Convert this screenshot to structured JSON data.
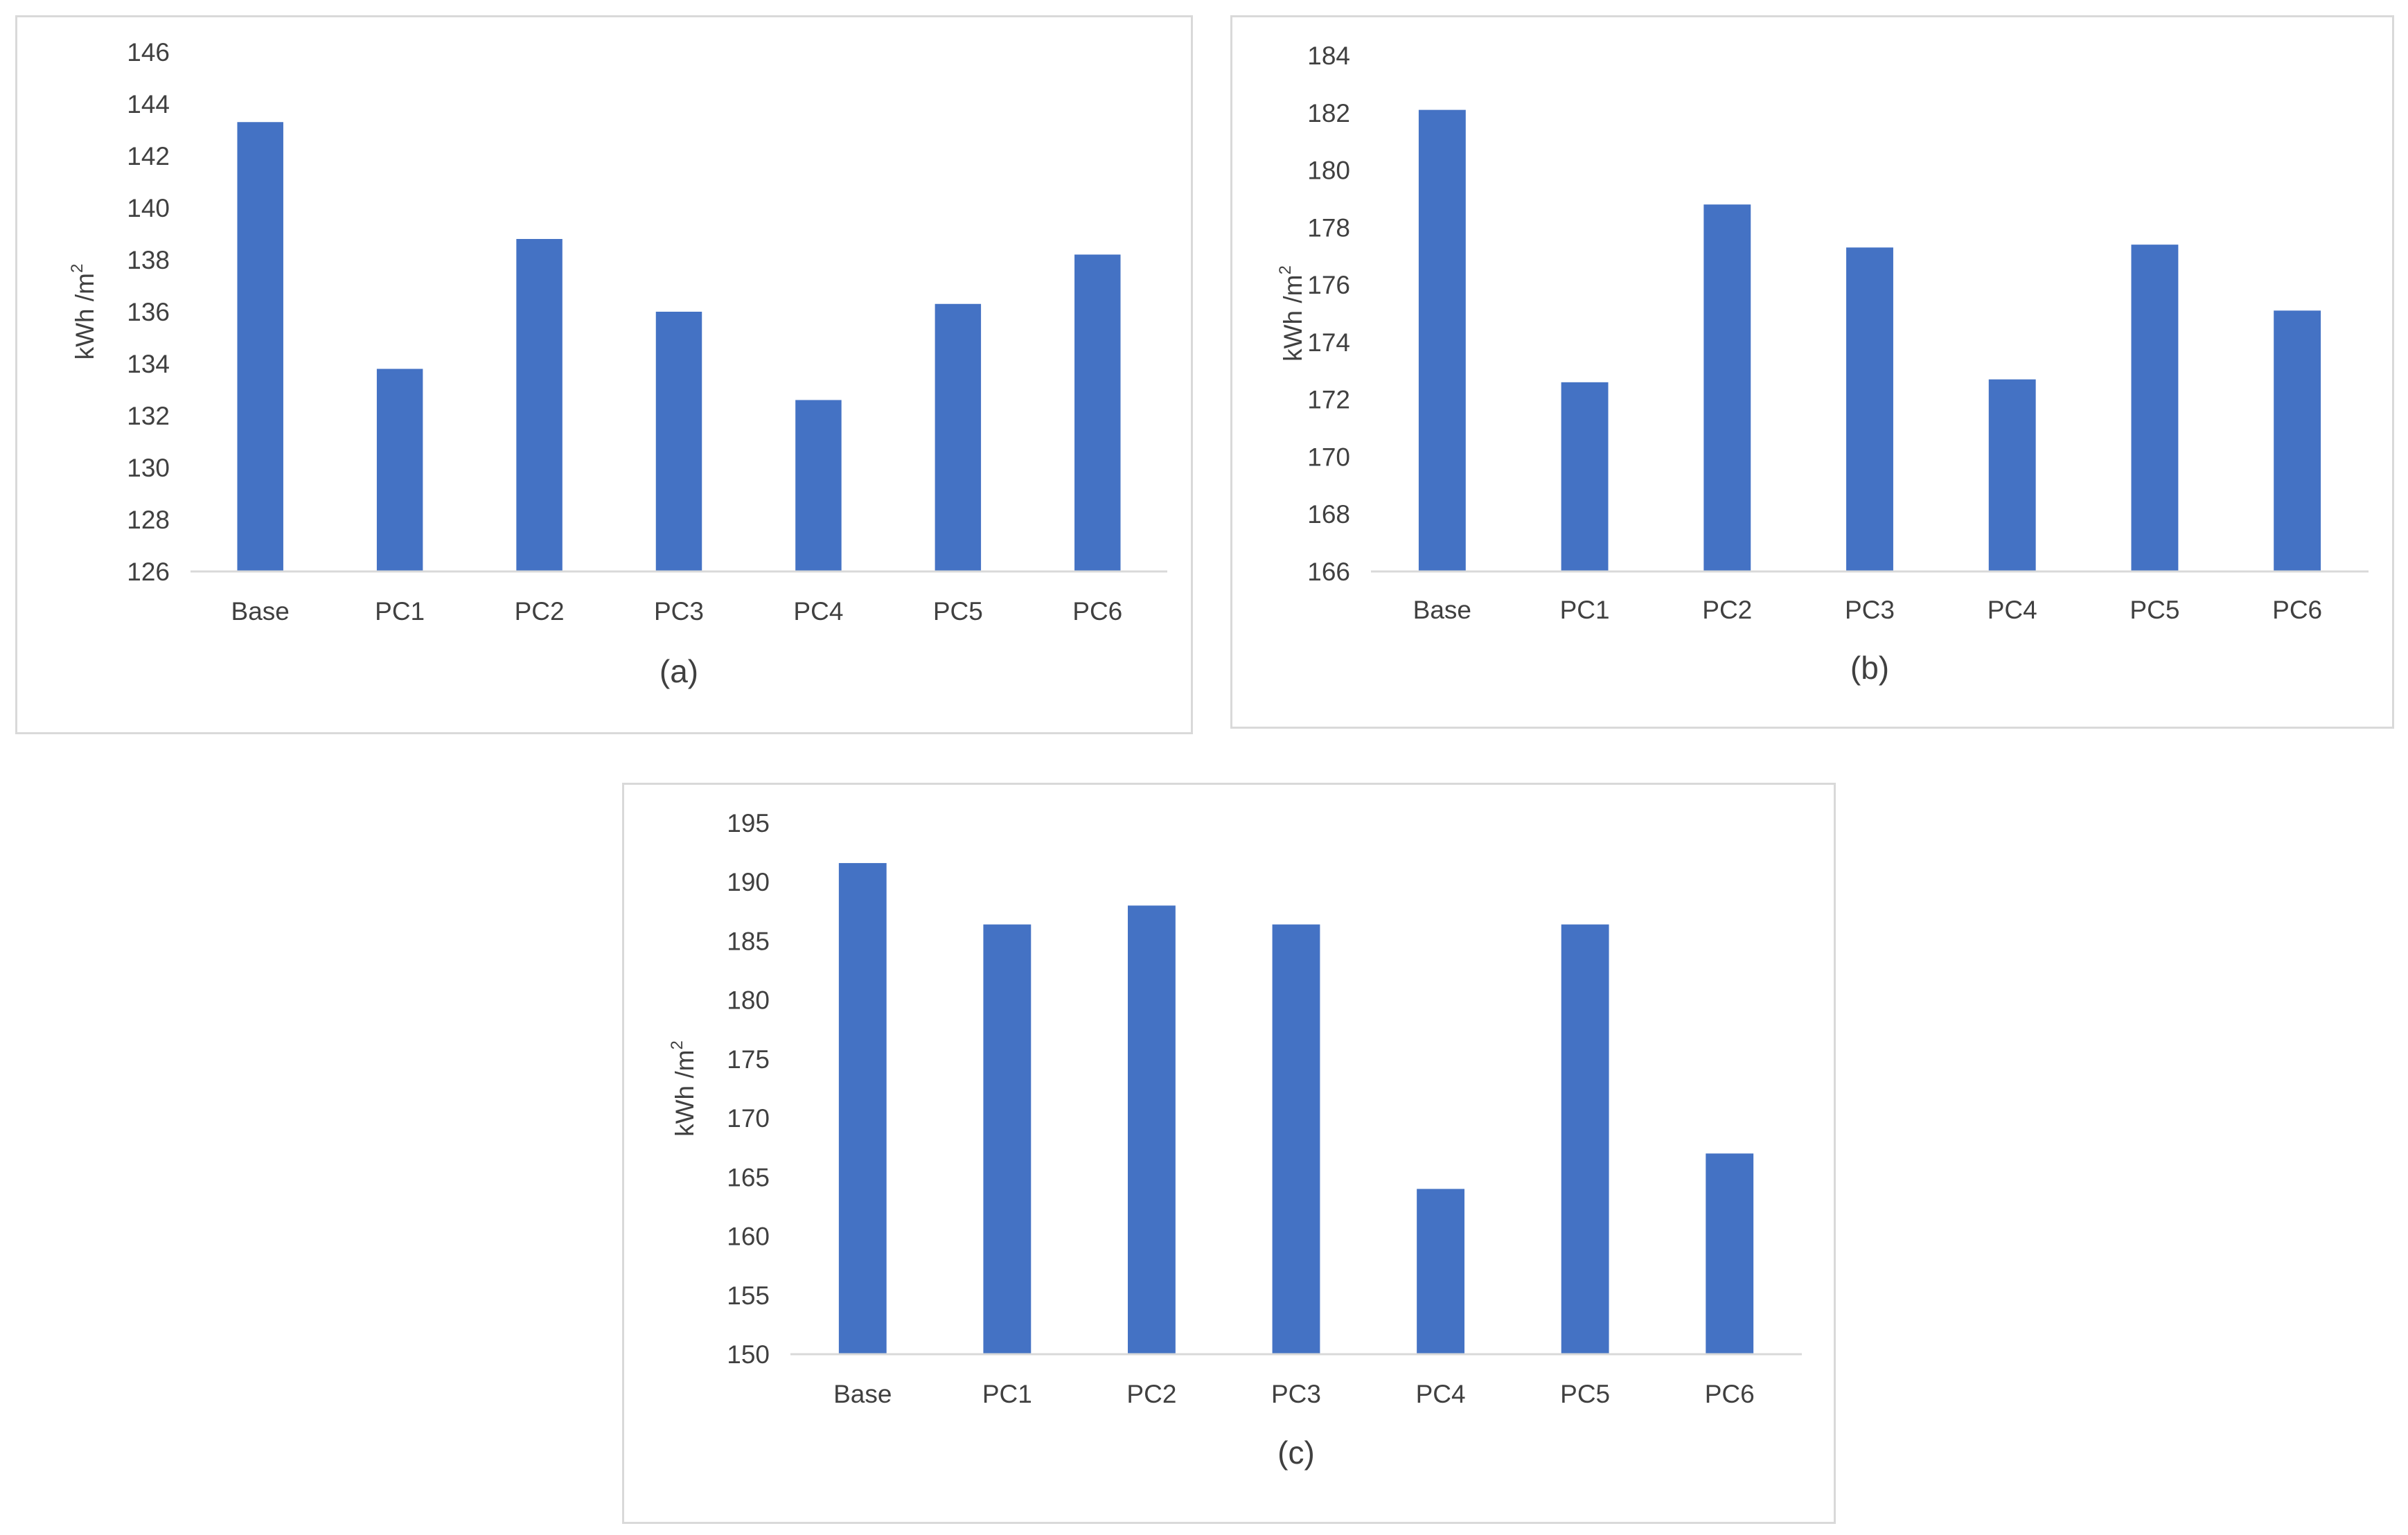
{
  "chart_data": [
    {
      "type": "bar",
      "caption": "(a)",
      "ylabel": "kWh /m",
      "ylabel_superscript": "2",
      "categories": [
        "Base",
        "PC1",
        "PC2",
        "PC3",
        "PC4",
        "PC5",
        "PC6"
      ],
      "values": [
        143.3,
        133.8,
        138.8,
        136.0,
        132.6,
        136.3,
        138.2
      ],
      "ylim": [
        126,
        146
      ],
      "yticks": [
        "126",
        "128",
        "130",
        "132",
        "134",
        "136",
        "138",
        "140",
        "142",
        "144",
        "146"
      ],
      "bar_color": "#4472C4",
      "grid": false
    },
    {
      "type": "bar",
      "caption": "(b)",
      "ylabel": "kWh /m",
      "ylabel_superscript": "2",
      "categories": [
        "Base",
        "PC1",
        "PC2",
        "PC3",
        "PC4",
        "PC5",
        "PC6"
      ],
      "values": [
        182.1,
        172.6,
        178.8,
        177.3,
        172.7,
        177.4,
        175.1
      ],
      "ylim": [
        166,
        184
      ],
      "yticks": [
        "166",
        "168",
        "170",
        "172",
        "174",
        "176",
        "178",
        "180",
        "182",
        "184"
      ],
      "bar_color": "#4472C4",
      "grid": false
    },
    {
      "type": "bar",
      "caption": "(c)",
      "ylabel": "kWh /m",
      "ylabel_superscript": "2",
      "categories": [
        "Base",
        "PC1",
        "PC2",
        "PC3",
        "PC4",
        "PC5",
        "PC6"
      ],
      "values": [
        191.6,
        186.4,
        188.0,
        186.4,
        164.0,
        186.4,
        167.0
      ],
      "ylim": [
        150,
        195
      ],
      "yticks": [
        "150",
        "155",
        "160",
        "165",
        "170",
        "175",
        "180",
        "185",
        "190",
        "195"
      ],
      "bar_color": "#4472C4",
      "grid": false
    }
  ]
}
